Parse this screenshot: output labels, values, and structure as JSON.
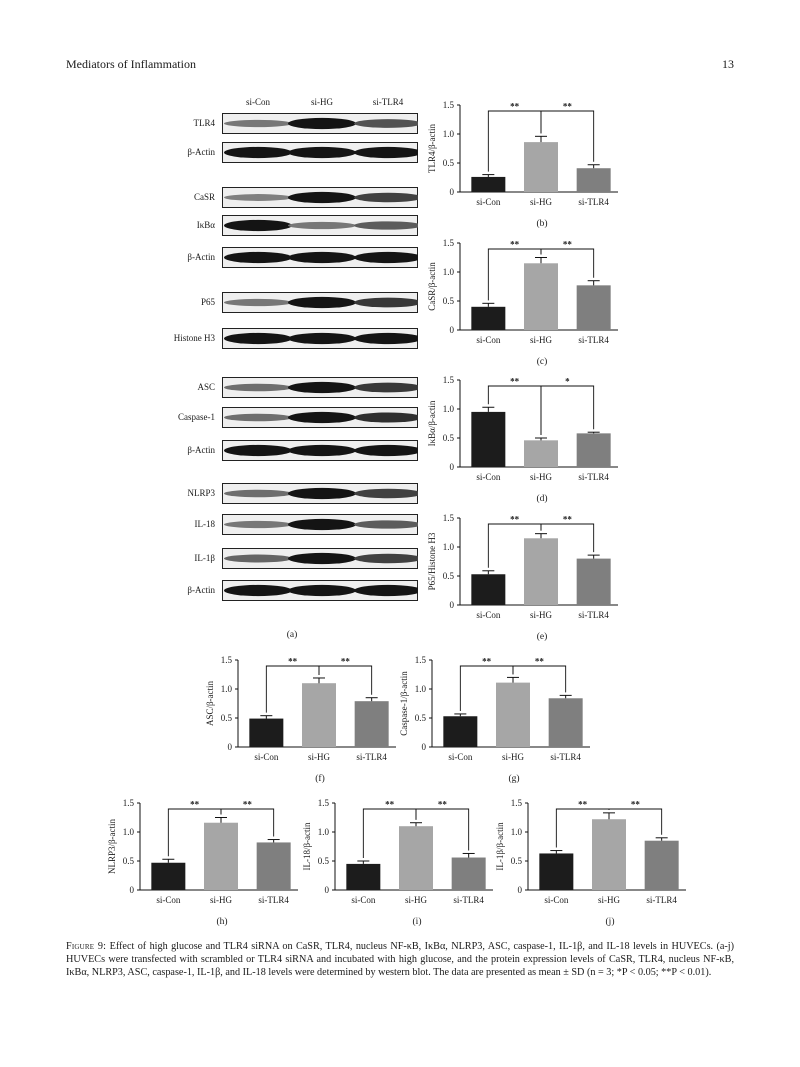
{
  "header": {
    "journal": "Mediators of Inflammation",
    "page_number": "13"
  },
  "blot": {
    "columns": [
      "si-Con",
      "si-HG",
      "si-TLR4"
    ],
    "groups": [
      {
        "bands": [
          {
            "label": "TLR4",
            "intensity": [
              0.45,
              1.0,
              0.65
            ]
          },
          {
            "label": "β-Actin",
            "intensity": [
              1.0,
              1.0,
              1.0
            ]
          }
        ]
      },
      {
        "bands": [
          {
            "label": "CaSR",
            "intensity": [
              0.4,
              1.0,
              0.75
            ]
          },
          {
            "label": "IκBα",
            "intensity": [
              1.0,
              0.45,
              0.6
            ]
          },
          {
            "label": "β-Actin",
            "intensity": [
              1.0,
              1.0,
              1.0
            ]
          }
        ]
      },
      {
        "bands": [
          {
            "label": "P65",
            "intensity": [
              0.45,
              1.0,
              0.8
            ]
          },
          {
            "label": "Histone H3",
            "intensity": [
              1.0,
              1.0,
              1.0
            ]
          }
        ]
      },
      {
        "bands": [
          {
            "label": "ASC",
            "intensity": [
              0.5,
              1.0,
              0.8
            ]
          },
          {
            "label": "Caspase-1",
            "intensity": [
              0.5,
              1.0,
              0.85
            ]
          },
          {
            "label": "β-Actin",
            "intensity": [
              1.0,
              1.0,
              1.0
            ]
          },
          {
            "label": "NLRP3",
            "intensity": [
              0.5,
              1.0,
              0.75
            ]
          },
          {
            "label": "IL-18",
            "intensity": [
              0.45,
              1.0,
              0.6
            ]
          },
          {
            "label": "IL-1β",
            "intensity": [
              0.55,
              1.0,
              0.75
            ]
          },
          {
            "label": "β-Actin",
            "intensity": [
              1.0,
              1.0,
              1.0
            ]
          }
        ]
      }
    ],
    "panel": "(a)"
  },
  "chart_data": [
    {
      "panel": "(b)",
      "type": "bar",
      "categories": [
        "si-Con",
        "si-HG",
        "si-TLR4"
      ],
      "ylabel": "TLR4/β-actin",
      "values": [
        0.26,
        0.86,
        0.41
      ],
      "errors": [
        0.04,
        0.1,
        0.06
      ],
      "ylim": [
        0,
        1.5
      ],
      "yticks": [
        "0",
        "0.5",
        "1.0",
        "1.5"
      ],
      "bar_colors": [
        "#1c1c1c",
        "#a6a6a6",
        "#7f7f7f"
      ],
      "significance": [
        {
          "from": 0,
          "to": 1,
          "label": "**"
        },
        {
          "from": 1,
          "to": 2,
          "label": "**"
        }
      ]
    },
    {
      "panel": "(c)",
      "type": "bar",
      "categories": [
        "si-Con",
        "si-HG",
        "si-TLR4"
      ],
      "ylabel": "CaSR/β-actin",
      "values": [
        0.4,
        1.15,
        0.77
      ],
      "errors": [
        0.06,
        0.1,
        0.08
      ],
      "ylim": [
        0,
        1.5
      ],
      "yticks": [
        "0",
        "0.5",
        "1.0",
        "1.5"
      ],
      "bar_colors": [
        "#1c1c1c",
        "#a6a6a6",
        "#7f7f7f"
      ],
      "significance": [
        {
          "from": 0,
          "to": 1,
          "label": "**"
        },
        {
          "from": 1,
          "to": 2,
          "label": "**"
        }
      ]
    },
    {
      "panel": "(d)",
      "type": "bar",
      "categories": [
        "si-Con",
        "si-HG",
        "si-TLR4"
      ],
      "ylabel": "IκBα/β-actin",
      "values": [
        0.95,
        0.46,
        0.58
      ],
      "errors": [
        0.08,
        0.04,
        0.02
      ],
      "ylim": [
        0,
        1.5
      ],
      "yticks": [
        "0",
        "0.5",
        "1.0",
        "1.5"
      ],
      "bar_colors": [
        "#1c1c1c",
        "#a6a6a6",
        "#7f7f7f"
      ],
      "significance": [
        {
          "from": 0,
          "to": 1,
          "label": "**"
        },
        {
          "from": 1,
          "to": 2,
          "label": "*"
        }
      ]
    },
    {
      "panel": "(e)",
      "type": "bar",
      "categories": [
        "si-Con",
        "si-HG",
        "si-TLR4"
      ],
      "ylabel": "P65/Histone H3",
      "values": [
        0.53,
        1.15,
        0.8
      ],
      "errors": [
        0.06,
        0.08,
        0.06
      ],
      "ylim": [
        0,
        1.5
      ],
      "yticks": [
        "0",
        "0.5",
        "1.0",
        "1.5"
      ],
      "bar_colors": [
        "#1c1c1c",
        "#a6a6a6",
        "#7f7f7f"
      ],
      "significance": [
        {
          "from": 0,
          "to": 1,
          "label": "**"
        },
        {
          "from": 1,
          "to": 2,
          "label": "**"
        }
      ]
    },
    {
      "panel": "(f)",
      "type": "bar",
      "categories": [
        "si-Con",
        "si-HG",
        "si-TLR4"
      ],
      "ylabel": "ASC/β-actin",
      "values": [
        0.49,
        1.1,
        0.79
      ],
      "errors": [
        0.05,
        0.09,
        0.06
      ],
      "ylim": [
        0,
        1.5
      ],
      "yticks": [
        "0",
        "0.5",
        "1.0",
        "1.5"
      ],
      "bar_colors": [
        "#1c1c1c",
        "#a6a6a6",
        "#7f7f7f"
      ],
      "significance": [
        {
          "from": 0,
          "to": 1,
          "label": "**"
        },
        {
          "from": 1,
          "to": 2,
          "label": "**"
        }
      ]
    },
    {
      "panel": "(g)",
      "type": "bar",
      "categories": [
        "si-Con",
        "si-HG",
        "si-TLR4"
      ],
      "ylabel": "Caspase-1/β-actin",
      "values": [
        0.53,
        1.11,
        0.84
      ],
      "errors": [
        0.04,
        0.09,
        0.05
      ],
      "ylim": [
        0,
        1.5
      ],
      "yticks": [
        "0",
        "0.5",
        "1.0",
        "1.5"
      ],
      "bar_colors": [
        "#1c1c1c",
        "#a6a6a6",
        "#7f7f7f"
      ],
      "significance": [
        {
          "from": 0,
          "to": 1,
          "label": "**"
        },
        {
          "from": 1,
          "to": 2,
          "label": "**"
        }
      ]
    },
    {
      "panel": "(h)",
      "type": "bar",
      "categories": [
        "si-Con",
        "si-HG",
        "si-TLR4"
      ],
      "ylabel": "NLRP3/β-actin",
      "values": [
        0.47,
        1.16,
        0.82
      ],
      "errors": [
        0.06,
        0.09,
        0.05
      ],
      "ylim": [
        0,
        1.5
      ],
      "yticks": [
        "0",
        "0.5",
        "1.0",
        "1.5"
      ],
      "bar_colors": [
        "#1c1c1c",
        "#a6a6a6",
        "#7f7f7f"
      ],
      "significance": [
        {
          "from": 0,
          "to": 1,
          "label": "**"
        },
        {
          "from": 1,
          "to": 2,
          "label": "**"
        }
      ]
    },
    {
      "panel": "(i)",
      "type": "bar",
      "categories": [
        "si-Con",
        "si-HG",
        "si-TLR4"
      ],
      "ylabel": "IL-18/β-actin",
      "values": [
        0.45,
        1.1,
        0.56
      ],
      "errors": [
        0.05,
        0.06,
        0.07
      ],
      "ylim": [
        0,
        1.5
      ],
      "yticks": [
        "0",
        "0.5",
        "1.0",
        "1.5"
      ],
      "bar_colors": [
        "#1c1c1c",
        "#a6a6a6",
        "#7f7f7f"
      ],
      "significance": [
        {
          "from": 0,
          "to": 1,
          "label": "**"
        },
        {
          "from": 1,
          "to": 2,
          "label": "**"
        }
      ]
    },
    {
      "panel": "(j)",
      "type": "bar",
      "categories": [
        "si-Con",
        "si-HG",
        "si-TLR4"
      ],
      "ylabel": "IL-1β/β-actin",
      "values": [
        0.63,
        1.22,
        0.85
      ],
      "errors": [
        0.05,
        0.11,
        0.05
      ],
      "ylim": [
        0,
        1.5
      ],
      "yticks": [
        "0",
        "0.5",
        "1.0",
        "1.5"
      ],
      "bar_colors": [
        "#1c1c1c",
        "#a6a6a6",
        "#7f7f7f"
      ],
      "significance": [
        {
          "from": 0,
          "to": 1,
          "label": "**"
        },
        {
          "from": 1,
          "to": 2,
          "label": "**"
        }
      ]
    }
  ],
  "caption": {
    "label": "Figure 9:",
    "text": "Effect of high glucose and TLR4 siRNA on CaSR, TLR4, nucleus NF-κB, IκBα, NLRP3, ASC, caspase-1, IL-1β, and IL-18 levels in HUVECs. (a-j) HUVECs were transfected with scrambled or TLR4 siRNA and incubated with high glucose, and the protein expression levels of CaSR, TLR4, nucleus NF-κB, IκBα, NLRP3, ASC, caspase-1, IL-1β, and IL-18 levels were determined by western blot. The data are presented as mean ± SD (n = 3; *P < 0.05; **P < 0.01)."
  }
}
